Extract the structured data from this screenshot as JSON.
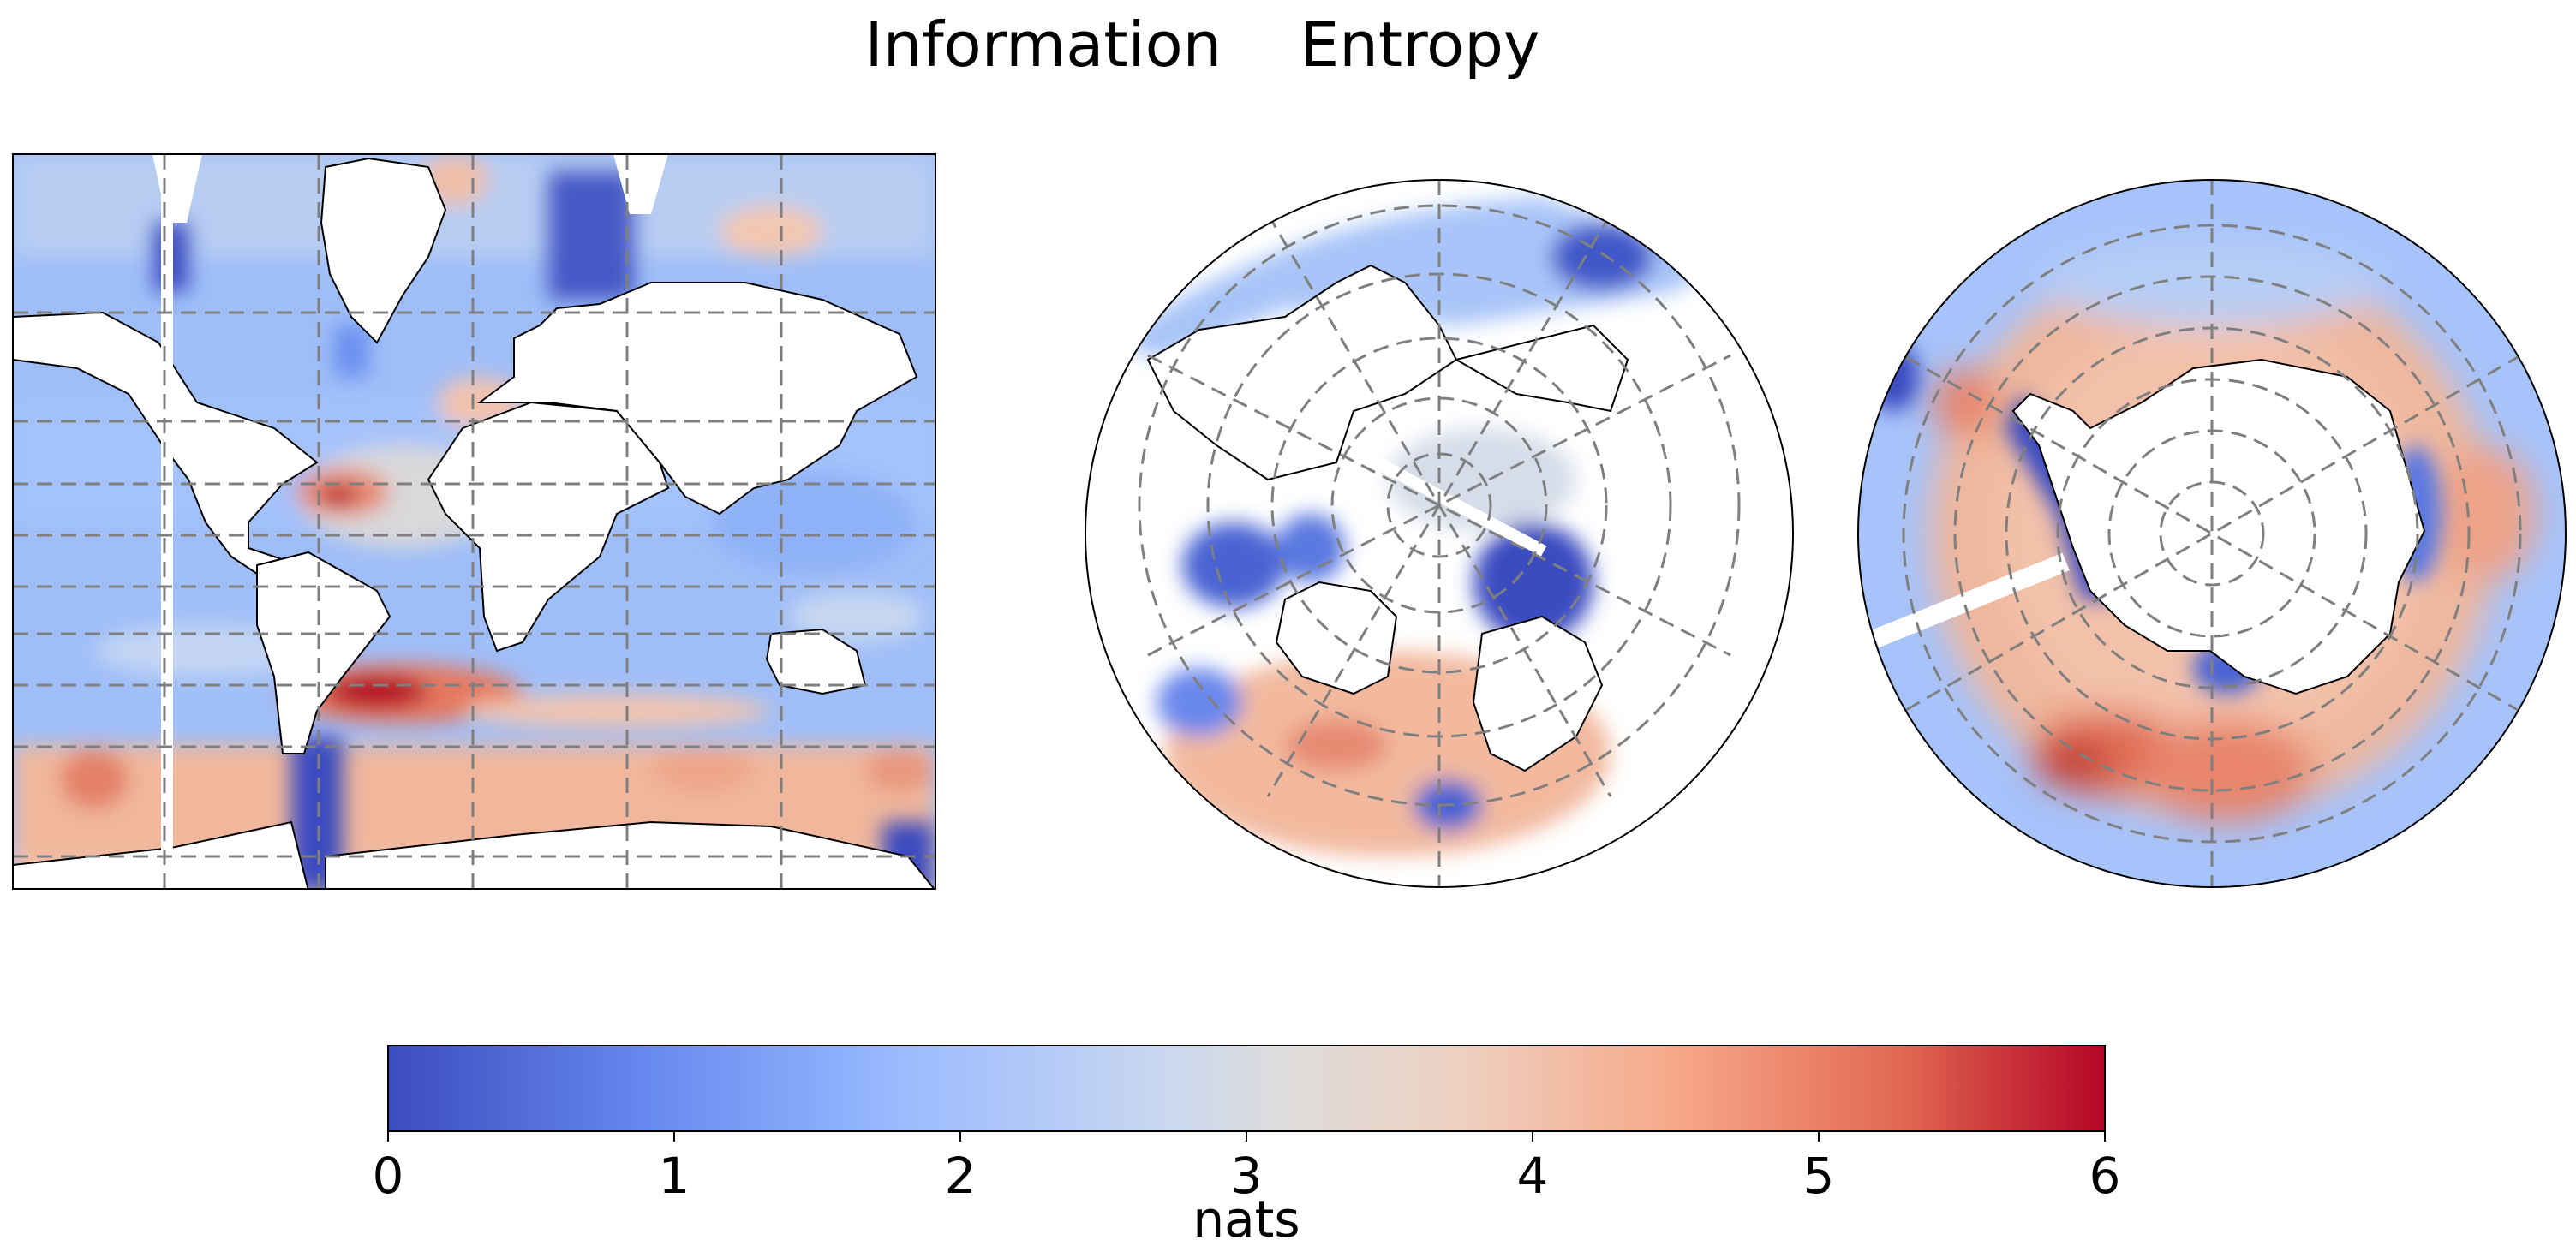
{
  "title": "Information    Entropy",
  "panels": [
    {
      "name": "global-mercator",
      "projection": "Mercator"
    },
    {
      "name": "north-polar",
      "projection": "North Polar Stereographic"
    },
    {
      "name": "south-polar",
      "projection": "South Polar Stereographic"
    }
  ],
  "colorbar": {
    "colormap": "coolwarm",
    "min": 0,
    "max": 6,
    "ticks": [
      "0",
      "1",
      "2",
      "3",
      "4",
      "5",
      "6"
    ],
    "label": "nats",
    "colors": [
      "#3b4cc0",
      "#6788ee",
      "#9abbff",
      "#c9d7f0",
      "#edd1c2",
      "#f7a889",
      "#e26952",
      "#b40426"
    ]
  },
  "map_colors": {
    "low": "#3b4cc0",
    "mid_low": "#7b9ff9",
    "mid": "#c0d4f5",
    "neutral": "#dddcdc",
    "mid_high": "#f2b79d",
    "high": "#e36b54",
    "max": "#b40426",
    "land": "#ffffff",
    "grid": "#7f7f7f"
  }
}
